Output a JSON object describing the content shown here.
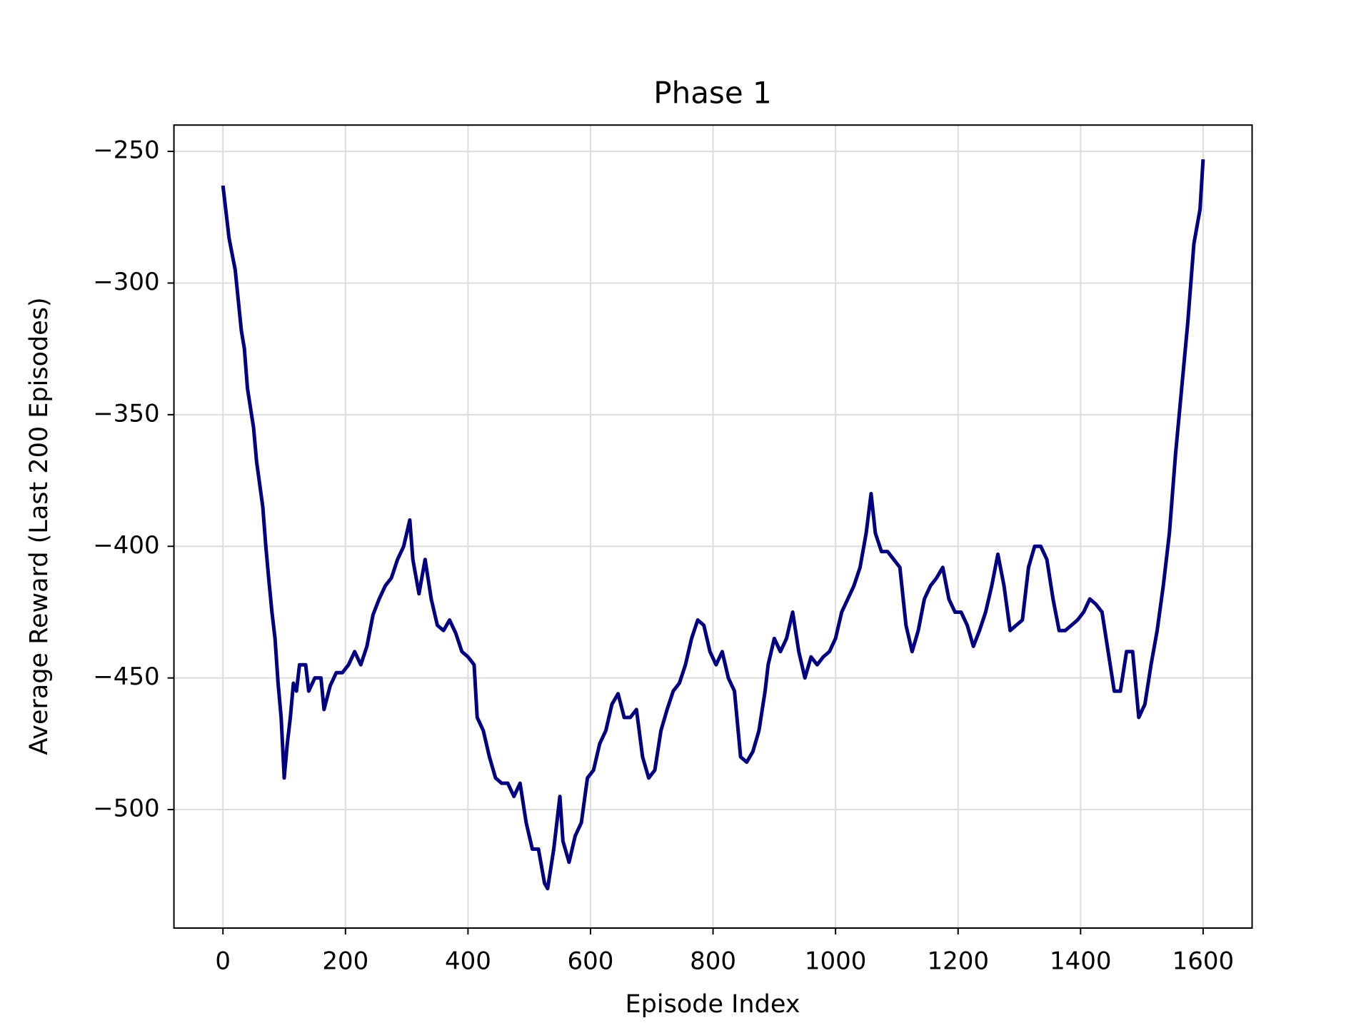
{
  "chart_data": {
    "type": "line",
    "title": "Phase 1",
    "x_label": "Episode Index",
    "y_label": "Average Reward (Last 200 Episodes)",
    "color": "#000080",
    "grid": true,
    "xlim": [
      -80,
      1680
    ],
    "ylim": [
      -545,
      -240
    ],
    "xticks": [
      0,
      200,
      400,
      600,
      800,
      1000,
      1200,
      1400,
      1600
    ],
    "yticks": [
      {
        "value": -250,
        "label": "−250"
      },
      {
        "value": -300,
        "label": "−300"
      },
      {
        "value": -350,
        "label": "−350"
      },
      {
        "value": -400,
        "label": "−400"
      },
      {
        "value": -450,
        "label": "−450"
      },
      {
        "value": -500,
        "label": "−500"
      }
    ],
    "x": [
      0,
      10,
      20,
      30,
      35,
      40,
      50,
      55,
      65,
      70,
      75,
      80,
      85,
      90,
      95,
      100,
      105,
      110,
      115,
      120,
      125,
      135,
      140,
      150,
      160,
      165,
      175,
      185,
      195,
      205,
      215,
      225,
      235,
      245,
      255,
      265,
      275,
      285,
      295,
      305,
      310,
      320,
      330,
      340,
      350,
      360,
      370,
      380,
      390,
      400,
      410,
      415,
      425,
      435,
      445,
      455,
      465,
      475,
      485,
      495,
      505,
      515,
      525,
      530,
      540,
      550,
      555,
      565,
      575,
      585,
      595,
      605,
      615,
      625,
      635,
      645,
      655,
      665,
      675,
      685,
      695,
      705,
      715,
      725,
      735,
      745,
      755,
      765,
      775,
      785,
      795,
      805,
      815,
      825,
      835,
      845,
      855,
      865,
      875,
      885,
      890,
      900,
      910,
      920,
      930,
      940,
      950,
      960,
      970,
      980,
      990,
      1000,
      1010,
      1020,
      1030,
      1040,
      1050,
      1058,
      1065,
      1075,
      1085,
      1095,
      1105,
      1115,
      1125,
      1135,
      1145,
      1155,
      1165,
      1175,
      1185,
      1195,
      1205,
      1215,
      1225,
      1235,
      1245,
      1255,
      1265,
      1275,
      1285,
      1295,
      1305,
      1315,
      1325,
      1335,
      1345,
      1355,
      1365,
      1375,
      1385,
      1395,
      1405,
      1415,
      1425,
      1435,
      1445,
      1455,
      1465,
      1475,
      1485,
      1495,
      1505,
      1515,
      1525,
      1535,
      1545,
      1555,
      1565,
      1575,
      1585,
      1595,
      1600
    ],
    "values": [
      -263,
      -283,
      -295,
      -318,
      -325,
      -340,
      -355,
      -368,
      -385,
      -400,
      -413,
      -425,
      -435,
      -452,
      -465,
      -488,
      -475,
      -465,
      -452,
      -455,
      -445,
      -445,
      -455,
      -450,
      -450,
      -462,
      -453,
      -448,
      -448,
      -445,
      -440,
      -445,
      -438,
      -426,
      -420,
      -415,
      -412,
      -405,
      -400,
      -390,
      -405,
      -418,
      -405,
      -420,
      -430,
      -432,
      -428,
      -433,
      -440,
      -442,
      -445,
      -465,
      -470,
      -480,
      -488,
      -490,
      -490,
      -495,
      -490,
      -505,
      -515,
      -515,
      -528,
      -530,
      -515,
      -495,
      -512,
      -520,
      -510,
      -505,
      -488,
      -485,
      -475,
      -470,
      -460,
      -456,
      -465,
      -465,
      -462,
      -480,
      -488,
      -485,
      -470,
      -462,
      -455,
      -452,
      -445,
      -435,
      -428,
      -430,
      -440,
      -445,
      -440,
      -450,
      -455,
      -480,
      -482,
      -478,
      -470,
      -455,
      -445,
      -435,
      -440,
      -435,
      -425,
      -440,
      -450,
      -442,
      -445,
      -442,
      -440,
      -435,
      -425,
      -420,
      -415,
      -408,
      -395,
      -380,
      -395,
      -402,
      -402,
      -405,
      -408,
      -430,
      -440,
      -432,
      -420,
      -415,
      -412,
      -408,
      -420,
      -425,
      -425,
      -430,
      -438,
      -432,
      -425,
      -415,
      -403,
      -415,
      -432,
      -430,
      -428,
      -408,
      -400,
      -400,
      -405,
      -420,
      -432,
      -432,
      -430,
      -428,
      -425,
      -420,
      -422,
      -425,
      -440,
      -455,
      -455,
      -440,
      -440,
      -465,
      -460,
      -445,
      -432,
      -415,
      -395,
      -365,
      -340,
      -315,
      -285,
      -272,
      -253
    ]
  }
}
